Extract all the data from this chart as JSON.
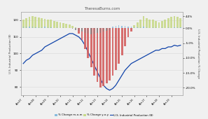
{
  "title": "TheresaBurns.com",
  "ylabel_left": "U.S. Industrial Production (B)",
  "ylabel_right": "U.S. Industrial Production % Change",
  "legend": [
    "% Change m-o-m",
    "% Change y-o-y",
    "U.S. Industrial Production (B)"
  ],
  "bar_color_yoy_pos": "#c8d98a",
  "bar_color_yoy_neg": "#d46060",
  "bar_color_mom_pos": "#88bbdd",
  "bar_color_mom_neg": "#888888",
  "line_color": "#1144aa",
  "background_color": "#f0f0f0",
  "grid_color": "#dddddd",
  "ylim_left": [
    75,
    125
  ],
  "ylim_right": [
    -0.225,
    0.055
  ],
  "yticks_left": [
    80,
    90,
    100,
    110,
    120
  ],
  "yticks_right": [
    -0.2,
    -0.15,
    -0.1,
    -0.05,
    0.0,
    0.04
  ],
  "yticks_right_labels": [
    "-20.0%",
    "-15.0%",
    "-10.0%",
    "-5.0%",
    "0.0%",
    "4.0%"
  ],
  "n_bars": 52,
  "ip_index": [
    94,
    96,
    97,
    99,
    100,
    101,
    102,
    104,
    105,
    106,
    107,
    108,
    109,
    110,
    111,
    112,
    112,
    111,
    110,
    108,
    105,
    101,
    97,
    93,
    89,
    85,
    81,
    79,
    78,
    79,
    81,
    84,
    87,
    90,
    92,
    94,
    95,
    96,
    97,
    98,
    99,
    100,
    101,
    102,
    102,
    103,
    103,
    104,
    104,
    105,
    104.5,
    105
  ],
  "yoy_change": [
    0.03,
    0.035,
    0.038,
    0.04,
    0.038,
    0.036,
    0.034,
    0.032,
    0.03,
    0.028,
    0.025,
    0.022,
    0.02,
    0.018,
    0.015,
    0.012,
    0.008,
    0.003,
    -0.018,
    -0.04,
    -0.07,
    -0.1,
    -0.13,
    -0.16,
    -0.18,
    -0.2,
    -0.195,
    -0.185,
    -0.175,
    -0.16,
    -0.14,
    -0.12,
    -0.09,
    -0.06,
    -0.03,
    -0.01,
    0.01,
    0.02,
    0.03,
    0.04,
    0.035,
    0.03,
    0.03,
    0.025,
    0.02,
    0.025,
    0.03,
    0.035,
    0.038,
    0.04,
    0.038,
    0.035
  ],
  "mom_change": [
    0.006,
    0.005,
    0.005,
    0.006,
    0.004,
    0.003,
    0.004,
    0.005,
    0.004,
    0.003,
    0.002,
    0.003,
    0.002,
    0.003,
    0.002,
    0.001,
    -0.002,
    -0.005,
    -0.008,
    -0.012,
    -0.015,
    -0.018,
    -0.02,
    -0.018,
    -0.016,
    -0.015,
    -0.01,
    -0.008,
    -0.005,
    0.005,
    0.008,
    0.01,
    0.008,
    0.009,
    0.006,
    0.005,
    0.004,
    0.003,
    0.004,
    0.005,
    0.003,
    0.002,
    0.003,
    0.004,
    0.002,
    0.003,
    0.002,
    0.003,
    0.002,
    0.003,
    0.003,
    0.004
  ],
  "x_tick_labels": [
    "Apr-07",
    "",
    "",
    "",
    "Apr-08",
    "",
    "",
    "",
    "Apr-09",
    "",
    "",
    "",
    "Apr-10",
    "",
    "",
    "",
    "Apr-11",
    "",
    "",
    "",
    "Apr-12",
    "",
    "",
    "",
    "Apr-13",
    "",
    "",
    "",
    "Apr-14",
    "",
    "",
    "",
    "Apr-15",
    "",
    "",
    "",
    "Apr-16",
    "",
    "",
    "",
    "Apr-17",
    "",
    "",
    "",
    "Apr-18",
    "",
    "",
    "",
    "Apr-19",
    "",
    "",
    ""
  ]
}
